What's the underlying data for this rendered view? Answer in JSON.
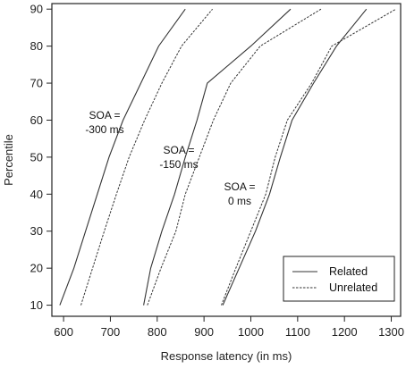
{
  "chart_data": {
    "type": "line",
    "xlabel": "Response latency (in ms)",
    "ylabel": "Percentile",
    "xlim": [
      575,
      1320
    ],
    "ylim": [
      7,
      91.5
    ],
    "x_ticks": [
      600,
      700,
      800,
      900,
      1000,
      1100,
      1200,
      1300
    ],
    "y_ticks": [
      10,
      20,
      30,
      40,
      50,
      60,
      70,
      80,
      90
    ],
    "percentiles": [
      10,
      20,
      30,
      40,
      50,
      60,
      70,
      80,
      90
    ],
    "series": [
      {
        "name": "Related",
        "group": "-300",
        "style": "solid",
        "x": [
          592,
          622,
          647,
          672,
          697,
          727,
          765,
          803,
          860
        ]
      },
      {
        "name": "Unrelated",
        "group": "-300",
        "style": "dotted",
        "x": [
          637,
          662,
          687,
          713,
          740,
          773,
          810,
          852,
          918
        ]
      },
      {
        "name": "Related",
        "group": "-150",
        "style": "solid",
        "x": [
          771,
          786,
          810,
          837,
          860,
          885,
          907,
          1000,
          1085
        ]
      },
      {
        "name": "Unrelated",
        "group": "-150",
        "style": "dotted",
        "x": [
          779,
          808,
          840,
          860,
          890,
          920,
          957,
          1020,
          1150
        ]
      },
      {
        "name": "Related",
        "group": "0",
        "style": "solid",
        "x": [
          940,
          975,
          1010,
          1040,
          1063,
          1088,
          1134,
          1183,
          1247
        ]
      },
      {
        "name": "Unrelated",
        "group": "0",
        "style": "dotted",
        "x": [
          937,
          968,
          1000,
          1032,
          1052,
          1078,
          1130,
          1173,
          1310
        ]
      }
    ],
    "annotations": [
      {
        "lines": [
          "SOA =",
          "-300 ms"
        ]
      },
      {
        "lines": [
          "SOA =",
          "-150 ms"
        ]
      },
      {
        "lines": [
          "SOA =",
          "0 ms"
        ]
      }
    ],
    "legend": {
      "position": "bottom-right",
      "entries": [
        {
          "label": "Related",
          "style": "solid"
        },
        {
          "label": "Unrelated",
          "style": "dotted"
        }
      ]
    },
    "colors": {
      "line": "#333333",
      "frame": "#222222"
    }
  }
}
